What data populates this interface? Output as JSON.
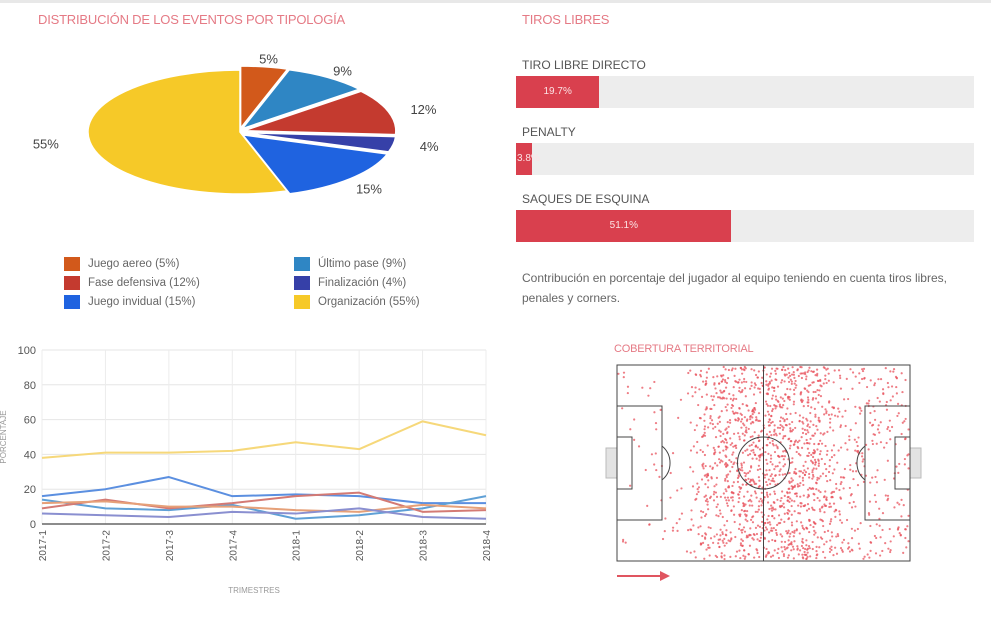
{
  "pie": {
    "title": "DISTRIBUCIÓN DE LOS EVENTOS POR TIPOLOGÍA",
    "slices": [
      {
        "name": "Juego aereo",
        "legend": "Juego aereo (5%)",
        "pct": 5,
        "label": "5%",
        "color": "#d2591b"
      },
      {
        "name": "Último pase",
        "legend": "Último pase (9%)",
        "pct": 9,
        "label": "9%",
        "color": "#2f86c4"
      },
      {
        "name": "Fase defensiva",
        "legend": "Fase defensiva (12%)",
        "pct": 12,
        "label": "12%",
        "color": "#c43a2f"
      },
      {
        "name": "Finalización",
        "legend": "Finalización (4%)",
        "pct": 4,
        "label": "4%",
        "color": "#3640a8"
      },
      {
        "name": "Juego invidual",
        "legend": "Juego invidual (15%)",
        "pct": 15,
        "label": "15%",
        "color": "#1f63e0"
      },
      {
        "name": "Organización",
        "legend": "Organización (55%)",
        "pct": 55,
        "label": "55%",
        "color": "#f6c928"
      }
    ],
    "legend_order": [
      0,
      1,
      2,
      3,
      4,
      5
    ]
  },
  "free_kicks": {
    "title": "TIROS LIBRES",
    "bars": [
      {
        "label": "TIRO LIBRE DIRECTO",
        "value": 19.7,
        "value_label": "19.7%"
      },
      {
        "label": "PENALTY",
        "value": 3.8,
        "value_label": "3.8%"
      },
      {
        "label": "SAQUES DE ESQUINA",
        "value": 51.1,
        "value_label": "51.1%"
      }
    ],
    "description": "Contribución en porcentaje del jugador al equipo teniendo en cuenta tiros libres, penales y corners."
  },
  "chart_data": {
    "type": "line",
    "title": "",
    "xlabel": "TRIMESTRES",
    "ylabel": "PORCENTAJE",
    "categories": [
      "2017-1",
      "2017-2",
      "2017-3",
      "2017-4",
      "2018-1",
      "2018-2",
      "2018-3",
      "2018-4"
    ],
    "ylim": [
      0,
      100
    ],
    "yticks": [
      0,
      20,
      40,
      60,
      80,
      100
    ],
    "grid": true,
    "series": [
      {
        "name": "Organización",
        "color": "#f6d87a",
        "values": [
          38,
          41,
          41,
          42,
          47,
          43,
          59,
          51
        ]
      },
      {
        "name": "Juego invidual",
        "color": "#5b8fe0",
        "values": [
          16,
          20,
          27,
          16,
          17,
          16,
          12,
          12
        ]
      },
      {
        "name": "Último pase",
        "color": "#5fa0d6",
        "values": [
          14,
          9,
          8,
          11,
          3,
          5,
          9,
          16
        ]
      },
      {
        "name": "Fase defensiva",
        "color": "#d47a74",
        "values": [
          9,
          14,
          9,
          12,
          16,
          18,
          7,
          8
        ]
      },
      {
        "name": "Juego aereo",
        "color": "#e6a078",
        "values": [
          12,
          13,
          10,
          10,
          8,
          7,
          11,
          9
        ]
      },
      {
        "name": "Finalización",
        "color": "#8a8fd0",
        "values": [
          6,
          5,
          4,
          7,
          6,
          9,
          4,
          3
        ]
      }
    ]
  },
  "coverage": {
    "title": "COBERTURA TERRITORIAL"
  }
}
